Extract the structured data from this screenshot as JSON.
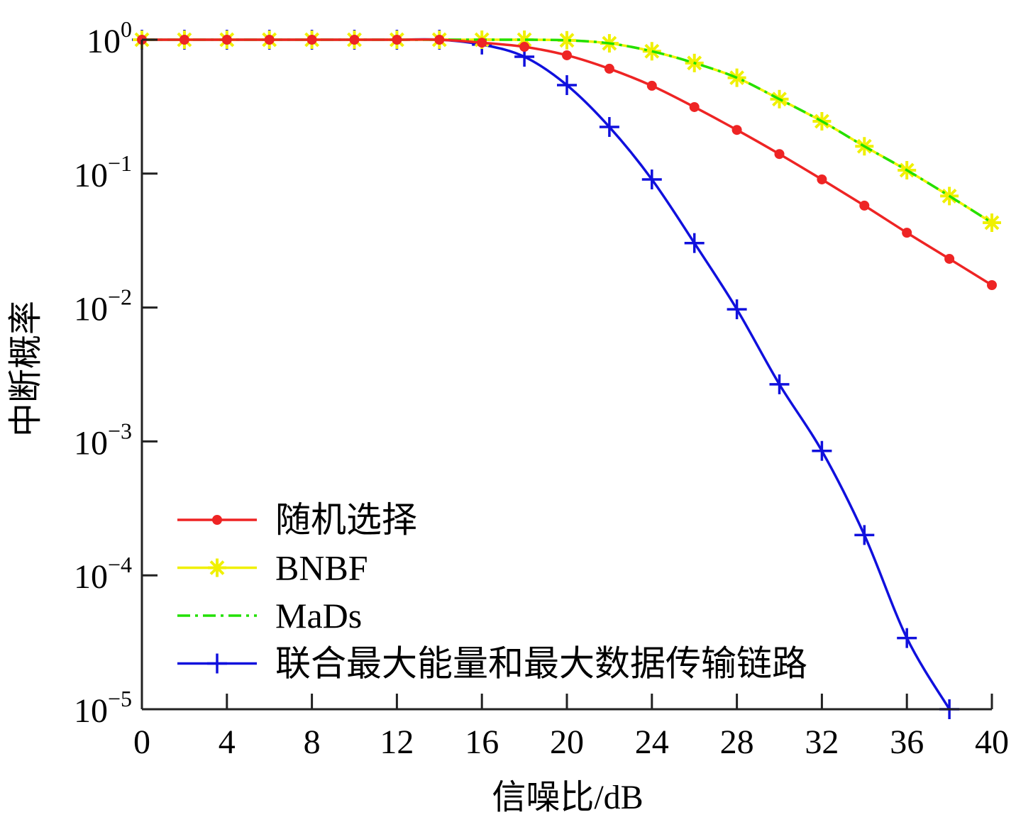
{
  "chart_data": {
    "type": "line",
    "xlabel": "信噪比/dB",
    "ylabel": "中断概率",
    "xlim": [
      0,
      40
    ],
    "ylim": [
      1e-05,
      1
    ],
    "yscale": "log",
    "grid": false,
    "legend_position": "bottom-left",
    "x_ticks": [
      "0",
      "4",
      "8",
      "12",
      "16",
      "20",
      "24",
      "28",
      "32",
      "36",
      "40"
    ],
    "y_ticks": [
      {
        "base": "10",
        "exp": "0"
      },
      {
        "base": "10",
        "exp": "−1"
      },
      {
        "base": "10",
        "exp": "−2"
      },
      {
        "base": "10",
        "exp": "−3"
      },
      {
        "base": "10",
        "exp": "−4"
      },
      {
        "base": "10",
        "exp": "−5"
      }
    ],
    "x": [
      0,
      2,
      4,
      6,
      8,
      10,
      12,
      14,
      16,
      18,
      20,
      22,
      24,
      26,
      28,
      30,
      32,
      34,
      36,
      38,
      40
    ],
    "series": [
      {
        "name": "随机选择",
        "color": "#ee2424",
        "dash": "solid",
        "marker": "dot",
        "values": [
          1,
          1,
          1,
          1,
          1,
          1,
          1,
          1,
          0.95,
          0.885,
          0.765,
          0.607,
          0.453,
          0.314,
          0.212,
          0.14,
          0.0905,
          0.0577,
          0.0362,
          0.0231,
          0.0147
        ]
      },
      {
        "name": "BNBF",
        "color": "#f0f000",
        "dash": "solid",
        "marker": "asterisk",
        "values": [
          1,
          1,
          1,
          1,
          1,
          1,
          1,
          1,
          1,
          1,
          0.99,
          0.94,
          0.82,
          0.67,
          0.52,
          0.36,
          0.246,
          0.16,
          0.106,
          0.068,
          0.043
        ]
      },
      {
        "name": "MaDs",
        "color": "#22e000",
        "dash": "dashdot",
        "marker": "none",
        "values": [
          1,
          1,
          1,
          1,
          1,
          1,
          1,
          1,
          1,
          1,
          0.99,
          0.94,
          0.82,
          0.67,
          0.52,
          0.36,
          0.246,
          0.16,
          0.106,
          0.068,
          0.043
        ]
      },
      {
        "name": "联合最大能量和最大数据传输链路",
        "color": "#1010dd",
        "dash": "solid",
        "marker": "plus",
        "values": [
          1,
          1,
          1,
          1,
          1,
          1,
          1,
          1,
          0.92,
          0.746,
          0.458,
          0.223,
          0.0905,
          0.0303,
          0.0097,
          0.00267,
          0.00085,
          0.0002,
          3.4e-05,
          1e-05,
          null
        ]
      }
    ]
  }
}
